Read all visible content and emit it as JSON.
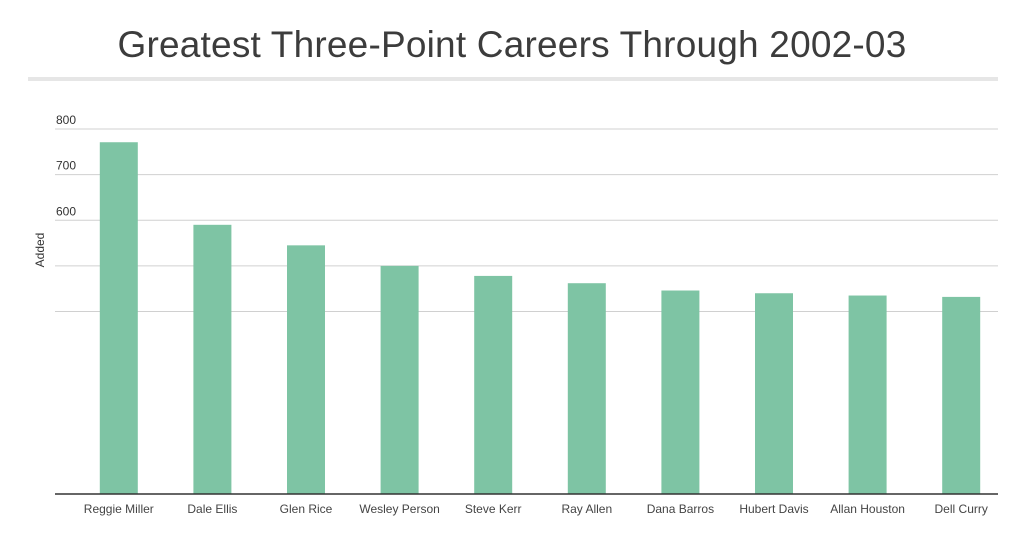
{
  "chart_data": {
    "type": "bar",
    "title": "Greatest Three-Point Careers Through 2002-03",
    "ylabel": "Added",
    "xlabel": "",
    "ylim": [
      0,
      800
    ],
    "yticks": [
      600,
      700,
      800
    ],
    "grid": true,
    "categories": [
      "Reggie Miller",
      "Dale Ellis",
      "Glen Rice",
      "Wesley Person",
      "Steve Kerr",
      "Ray Allen",
      "Dana Barros",
      "Hubert Davis",
      "Allan Houston",
      "Dell Curry"
    ],
    "values": [
      771,
      590,
      545,
      500,
      478,
      462,
      446,
      440,
      435,
      432
    ],
    "colors": {
      "bar": "#7ec4a4",
      "grid": "#d0d0d0",
      "axis": "#333333"
    }
  }
}
